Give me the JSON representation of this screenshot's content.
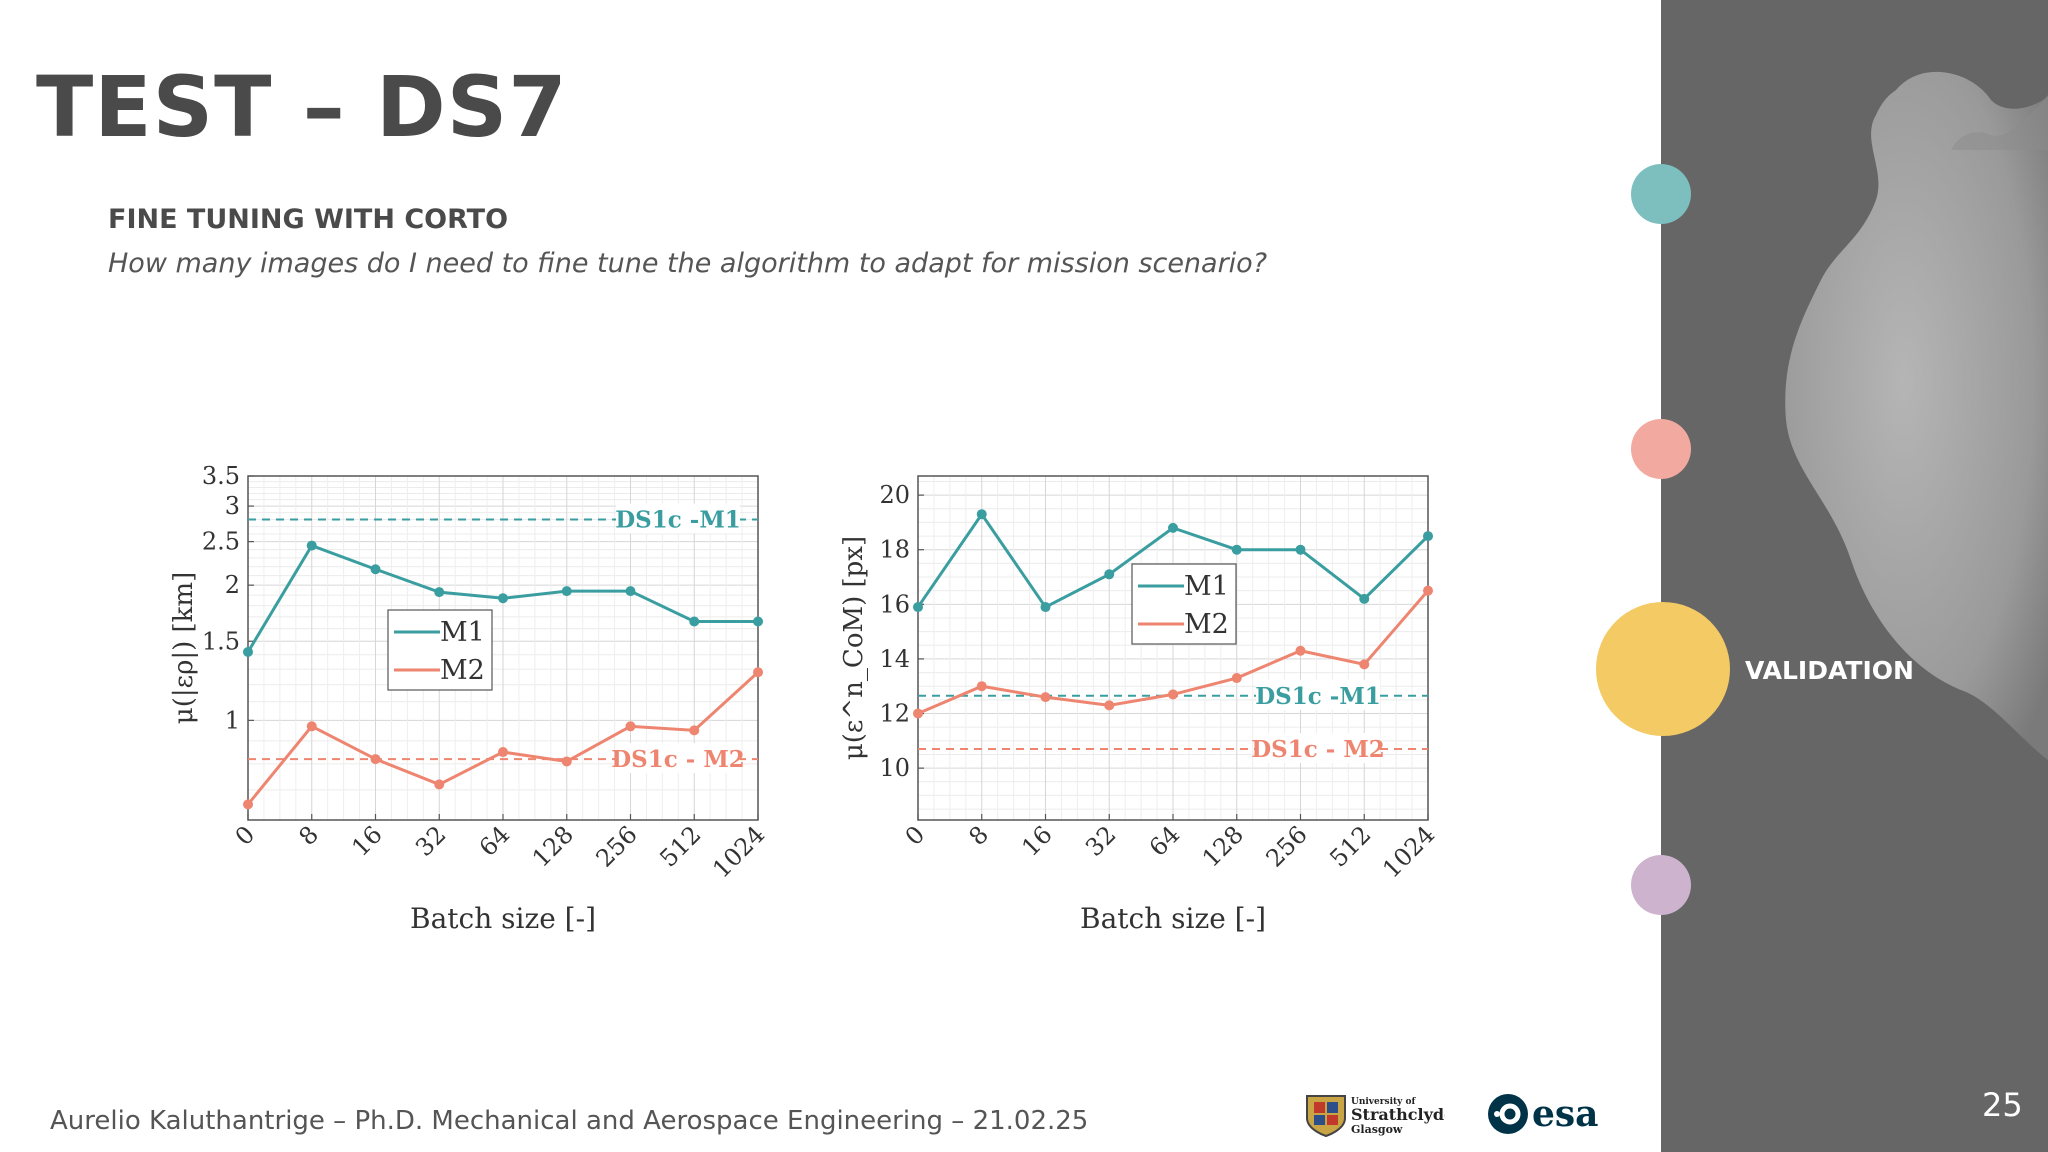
{
  "slide": {
    "title": "TEST – DS7",
    "subtitle": "FINE TUNING WITH CORTO",
    "question": "How many images do I need to fine tune the algorithm to adapt for mission scenario?",
    "footer": "Aurelio Kaluthantrige – Ph.D. Mechanical and Aerospace Engineering – 21.02.25",
    "page_number": "25"
  },
  "sidebar": {
    "active_section": "VALIDATION",
    "dot_colors": [
      "#7dbfbf",
      "#f2aaa0",
      "#f3ca63",
      "#cdb3ce"
    ],
    "background": "#666666"
  },
  "logos": {
    "strathclyde": [
      "University of",
      "Strathclyde",
      "Glasgow"
    ],
    "esa": "esa"
  },
  "colors": {
    "m1": "#3a9ea0",
    "m2": "#ee8570"
  },
  "chart_data": [
    {
      "type": "line",
      "xlabel": "Batch size [-]",
      "ylabel": "μ(|ερ|) [km]",
      "yscale": "log",
      "ylim": [
        0.6,
        3.5
      ],
      "yticks": [
        "1",
        "1.5",
        "2",
        "2.5",
        "3",
        "3.5"
      ],
      "categories": [
        "0",
        "8",
        "16",
        "32",
        "64",
        "128",
        "256",
        "512",
        "1024"
      ],
      "series": [
        {
          "name": "M1",
          "values": [
            1.42,
            2.45,
            2.17,
            1.93,
            1.87,
            1.94,
            1.94,
            1.66,
            1.66
          ]
        },
        {
          "name": "M2",
          "values": [
            0.65,
            0.97,
            0.82,
            0.72,
            0.85,
            0.81,
            0.97,
            0.95,
            1.28
          ]
        }
      ],
      "reference_lines": [
        {
          "label": "DS1c -M1",
          "value": 2.8
        },
        {
          "label": "DS1c - M2",
          "value": 0.82
        }
      ],
      "legend": "center-left",
      "grid": true
    },
    {
      "type": "line",
      "xlabel": "Batch size [-]",
      "ylabel": "μ(ε^n_CoM) [px]",
      "ylim": [
        8.1,
        20.7
      ],
      "yticks": [
        "10",
        "12",
        "14",
        "16",
        "18",
        "20"
      ],
      "categories": [
        "0",
        "8",
        "16",
        "32",
        "64",
        "128",
        "256",
        "512",
        "1024"
      ],
      "series": [
        {
          "name": "M1",
          "values": [
            15.9,
            19.3,
            15.9,
            17.1,
            18.8,
            18.0,
            18.0,
            16.2,
            18.5
          ]
        },
        {
          "name": "M2",
          "values": [
            12.0,
            13.0,
            12.6,
            12.3,
            12.7,
            13.3,
            14.3,
            13.8,
            16.5
          ]
        }
      ],
      "reference_lines": [
        {
          "label": "DS1c -M1",
          "value": 12.65
        },
        {
          "label": "DS1c - M2",
          "value": 10.7
        }
      ],
      "legend": "top-center",
      "grid": true
    }
  ]
}
